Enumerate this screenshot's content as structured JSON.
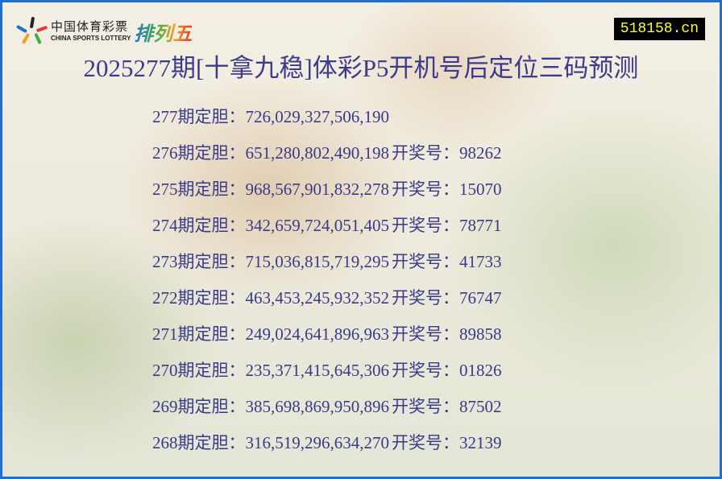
{
  "logo": {
    "cn": "中国体育彩票",
    "en": "CHINA SPORTS LOTTERY",
    "game": "排列五"
  },
  "site": "518158.cn",
  "title": "2025277期[十拿九稳]体彩P5开机号后定位三码预测",
  "colors": {
    "border": "#1d6fd6",
    "text": "#3a3a8a",
    "site_bg": "#000000",
    "site_text": "#ffff33"
  },
  "rows": [
    {
      "issue": "277期定胆：",
      "numbers": "726,029,327,506,190",
      "result_label": "",
      "result": ""
    },
    {
      "issue": "276期定胆：",
      "numbers": "651,280,802,490,198",
      "result_label": "开奖号：",
      "result": "98262"
    },
    {
      "issue": "275期定胆：",
      "numbers": "968,567,901,832,278",
      "result_label": "开奖号：",
      "result": "15070"
    },
    {
      "issue": "274期定胆：",
      "numbers": "342,659,724,051,405",
      "result_label": "开奖号：",
      "result": "78771"
    },
    {
      "issue": "273期定胆：",
      "numbers": "715,036,815,719,295",
      "result_label": "开奖号：",
      "result": "41733"
    },
    {
      "issue": "272期定胆：",
      "numbers": "463,453,245,932,352",
      "result_label": "开奖号：",
      "result": "76747"
    },
    {
      "issue": "271期定胆：",
      "numbers": "249,024,641,896,963",
      "result_label": "开奖号：",
      "result": "89858"
    },
    {
      "issue": "270期定胆：",
      "numbers": "235,371,415,645,306",
      "result_label": "开奖号：",
      "result": "01826"
    },
    {
      "issue": "269期定胆：",
      "numbers": "385,698,869,950,896",
      "result_label": "开奖号：",
      "result": "87502"
    },
    {
      "issue": "268期定胆：",
      "numbers": "316,519,296,634,270",
      "result_label": "开奖号：",
      "result": "32139"
    }
  ]
}
